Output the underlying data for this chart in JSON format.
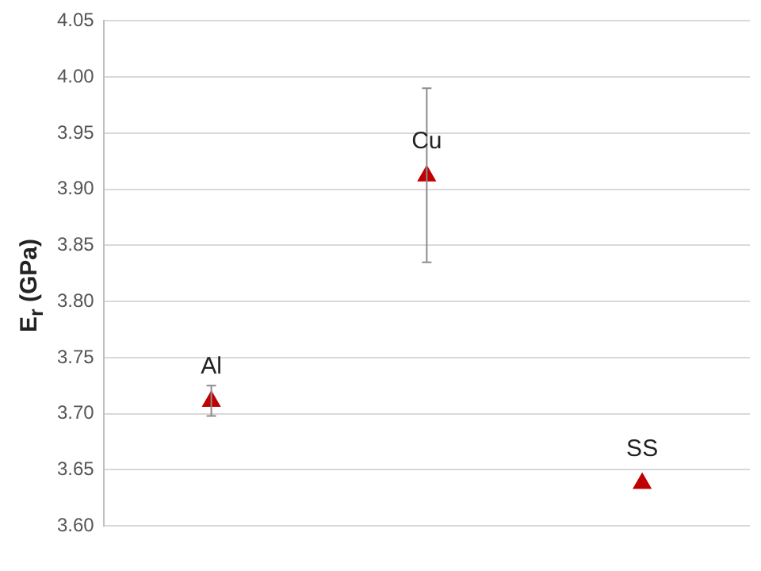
{
  "chart_data": {
    "type": "scatter",
    "ylabel": "E$_{r}$ (GPa)",
    "categories": [
      null,
      null,
      null
    ],
    "values": [
      3.711,
      3.912,
      3.638
    ],
    "errors": [
      [
        3.698,
        3.725
      ],
      [
        3.835,
        3.99
      ],
      null
    ],
    "value_labels": [
      "Al",
      "Cu",
      "SS"
    ],
    "color": "#c00000",
    "marker": "triangle",
    "ylim": [
      3.6,
      4.05
    ],
    "yticks": [
      {
        "value": 3.6,
        "label": "3.60"
      },
      {
        "value": 3.65,
        "label": "3.65"
      },
      {
        "value": 3.7,
        "label": "3.70"
      },
      {
        "value": 3.75,
        "label": "3.75"
      },
      {
        "value": 3.8,
        "label": "3.80"
      },
      {
        "value": 3.85,
        "label": "3.85"
      },
      {
        "value": 3.9,
        "label": "3.90"
      },
      {
        "value": 3.95,
        "label": "3.95"
      },
      {
        "value": 4.0,
        "label": "4.00"
      },
      {
        "value": 4.05,
        "label": "4.05"
      }
    ],
    "grid": "y"
  }
}
